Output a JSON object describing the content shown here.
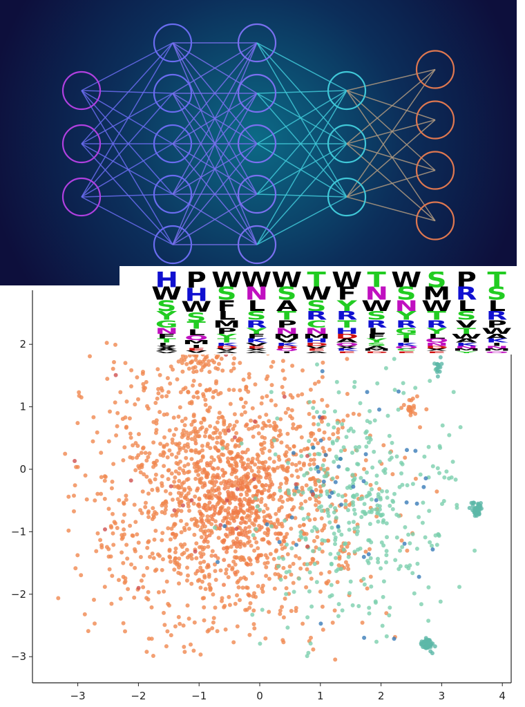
{
  "illustration": {
    "title": "neural network diagram",
    "layers": [
      {
        "nodes": 3,
        "color": "#b040e0"
      },
      {
        "nodes": 5,
        "color": "#6a6cf0"
      },
      {
        "nodes": 5,
        "color": "#7a70f0"
      },
      {
        "nodes": 3,
        "color": "#40c8d8"
      },
      {
        "nodes": 4,
        "color": "#e07850"
      }
    ],
    "background": "#0d0f3c",
    "glow": "#0c6a86"
  },
  "sequence_logo": {
    "colors": {
      "polar": "#22cc22",
      "basic": "#1010d0",
      "acidic": "#d01010",
      "amide": "#c010c0",
      "hydrophobic": "#000000"
    },
    "columns": [
      [
        "H",
        "W",
        "S",
        "Y",
        "G",
        "N",
        "F",
        "T",
        "L",
        "X",
        "A",
        "V"
      ],
      [
        "P",
        "H",
        "W",
        "S",
        "T",
        "L",
        "Q",
        "M",
        "I",
        "E",
        "V"
      ],
      [
        "W",
        "S",
        "F",
        "L",
        "M",
        "P",
        "Y",
        "T",
        "K",
        "D",
        "V",
        "A"
      ],
      [
        "W",
        "N",
        "L",
        "S",
        "R",
        "Y",
        "F",
        "K",
        "V",
        "E",
        "X",
        "A"
      ],
      [
        "W",
        "S",
        "A",
        "T",
        "P",
        "N",
        "M",
        "V",
        "K",
        "D",
        "Q",
        "I"
      ],
      [
        "T",
        "W",
        "S",
        "R",
        "C",
        "N",
        "M",
        "H",
        "D",
        "V",
        "E",
        "A"
      ],
      [
        "W",
        "F",
        "Y",
        "R",
        "T",
        "H",
        "D",
        "A",
        "Q",
        "X",
        "K",
        "E"
      ],
      [
        "T",
        "N",
        "W",
        "S",
        "R",
        "L",
        "F",
        "Y",
        "S",
        "A",
        "M",
        "D"
      ],
      [
        "W",
        "S",
        "N",
        "Y",
        "R",
        "G",
        "T",
        "I",
        "K",
        "Q",
        "C",
        "E"
      ],
      [
        "S",
        "M",
        "W",
        "T",
        "R",
        "Y",
        "L",
        "Q",
        "N",
        "D",
        "X",
        "E"
      ],
      [
        "P",
        "R",
        "L",
        "S",
        "V",
        "T",
        "W",
        "A",
        "K",
        "N",
        "M",
        "Y"
      ],
      [
        "T",
        "S",
        "L",
        "R",
        "P",
        "W",
        "A",
        "K",
        "I",
        "N",
        "M",
        "Q"
      ]
    ]
  },
  "chart_data": {
    "type": "scatter",
    "title": "",
    "xlabel": "",
    "ylabel": "",
    "xlim": [
      -3.6,
      4.1
    ],
    "ylim": [
      -3.4,
      2.8
    ],
    "xticks": [
      "−3",
      "−2",
      "−1",
      "0",
      "1",
      "2",
      "3",
      "4"
    ],
    "xtick_values": [
      -3,
      -2,
      -1,
      0,
      1,
      2,
      3,
      4
    ],
    "yticks": [
      "−3",
      "−2",
      "−1",
      "0",
      "1",
      "2"
    ],
    "ytick_values": [
      -3,
      -2,
      -1,
      0,
      1,
      2
    ],
    "grid": false,
    "legend": "none",
    "clusters": [
      {
        "name": "orange-main",
        "color": "#f08850",
        "center": [
          -0.6,
          -0.3
        ],
        "spread": [
          1.1,
          1.15
        ],
        "count": 1500
      },
      {
        "name": "orange-core",
        "color": "#f07c48",
        "center": [
          -0.4,
          -0.6
        ],
        "spread": [
          0.35,
          0.45
        ],
        "count": 200
      },
      {
        "name": "orange-top",
        "color": "#f08850",
        "center": [
          -1.0,
          1.75
        ],
        "spread": [
          0.15,
          0.1
        ],
        "count": 40
      },
      {
        "name": "orange-small",
        "color": "#f08850",
        "center": [
          2.5,
          1.0
        ],
        "spread": [
          0.07,
          0.07
        ],
        "count": 20
      },
      {
        "name": "orange-mid",
        "color": "#f08850",
        "center": [
          1.4,
          -1.4
        ],
        "spread": [
          0.08,
          0.1
        ],
        "count": 15
      },
      {
        "name": "teal-spread",
        "color": "#7ccfae",
        "center": [
          1.6,
          -0.6
        ],
        "spread": [
          0.8,
          0.9
        ],
        "count": 380
      },
      {
        "name": "teal-right",
        "color": "#5cb8a8",
        "center": [
          3.6,
          -0.62
        ],
        "spread": [
          0.06,
          0.05
        ],
        "count": 40
      },
      {
        "name": "teal-bottom",
        "color": "#5cb8a8",
        "center": [
          2.75,
          -2.8
        ],
        "spread": [
          0.06,
          0.06
        ],
        "count": 40
      },
      {
        "name": "teal-topright",
        "color": "#5cb8a8",
        "center": [
          2.95,
          1.65
        ],
        "spread": [
          0.05,
          0.08
        ],
        "count": 15
      },
      {
        "name": "blue-sparse",
        "color": "#3a7cb8",
        "center": [
          1.5,
          -0.5
        ],
        "spread": [
          0.9,
          0.9
        ],
        "count": 45
      },
      {
        "name": "red-sparse",
        "color": "#d05050",
        "center": [
          -0.3,
          -0.2
        ],
        "spread": [
          1.1,
          1.1
        ],
        "count": 25
      }
    ]
  }
}
